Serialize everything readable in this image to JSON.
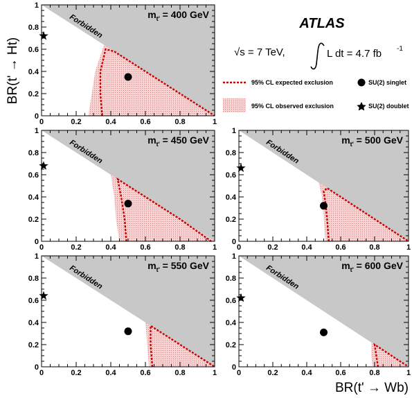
{
  "header": {
    "experiment": "ATLAS",
    "energy_label": "√s = 7 TeV,",
    "lumi_label": "L dt = 4.7 fb",
    "lumi_exponent": "-1"
  },
  "legend": {
    "expected": "95% CL expected exclusion",
    "observed": "95% CL observed exclusion",
    "singlet": "SU(2) singlet",
    "doublet": "SU(2) doublet"
  },
  "axes": {
    "ylabel": "BR(t' → Ht)",
    "xlabel": "BR(t' → Wb)"
  },
  "forbidden_label": "Forbidden",
  "colors": {
    "forbidden": "#c8c8c8",
    "expected": "#cc0000",
    "observed_fill": "#f5c4c4"
  },
  "chart_data": [
    {
      "type": "scatter",
      "title": "m_t' = 400 GeV",
      "mass_label": "= 400 GeV",
      "xlim": [
        0,
        1
      ],
      "ylim": [
        0,
        1
      ],
      "x_ticks": [
        "0",
        "0.2",
        "0.4",
        "0.6",
        "0.8",
        "1"
      ],
      "y_ticks": [
        "0",
        "0.2",
        "0.4",
        "0.6",
        "0.8",
        "1"
      ],
      "expected_curve": [
        [
          0.35,
          0
        ],
        [
          0.34,
          0.2
        ],
        [
          0.34,
          0.4
        ],
        [
          0.37,
          0.6
        ],
        [
          0.42,
          0.58
        ],
        [
          0.6,
          0.4
        ],
        [
          0.8,
          0.2
        ],
        [
          1,
          0
        ]
      ],
      "observed_region": [
        [
          0.27,
          0
        ],
        [
          0.29,
          0.2
        ],
        [
          0.31,
          0.4
        ],
        [
          0.36,
          0.64
        ],
        [
          1,
          0
        ]
      ],
      "singlet": [
        0.5,
        0.35
      ],
      "doublet": [
        0,
        0.72
      ]
    },
    {
      "type": "scatter",
      "title": "m_t' = 450 GeV",
      "mass_label": "= 450 GeV",
      "xlim": [
        0,
        1
      ],
      "ylim": [
        0,
        1
      ],
      "x_ticks": [
        "0",
        "0.2",
        "0.4",
        "0.6",
        "0.8",
        "1"
      ],
      "y_ticks": [
        "0",
        "0.2",
        "0.4",
        "0.6",
        "0.8",
        "1"
      ],
      "expected_curve": [
        [
          0.49,
          0
        ],
        [
          0.48,
          0.2
        ],
        [
          0.46,
          0.4
        ],
        [
          0.44,
          0.56
        ],
        [
          0.6,
          0.4
        ],
        [
          0.8,
          0.2
        ],
        [
          0.98,
          0
        ]
      ],
      "observed_region": [
        [
          0.45,
          0
        ],
        [
          0.43,
          0.2
        ],
        [
          0.42,
          0.4
        ],
        [
          0.4,
          0.6
        ],
        [
          1,
          0
        ]
      ],
      "singlet": [
        0.5,
        0.34
      ],
      "doublet": [
        0,
        0.68
      ]
    },
    {
      "type": "scatter",
      "title": "m_t' = 500 GeV",
      "mass_label": "= 500 GeV",
      "xlim": [
        0,
        1
      ],
      "ylim": [
        0,
        1
      ],
      "x_ticks": [
        "0",
        "0.2",
        "0.4",
        "0.6",
        "0.8",
        "1"
      ],
      "y_ticks": [
        "0",
        "0.2",
        "0.4",
        "0.6",
        "0.8",
        "1"
      ],
      "expected_curve": [
        [
          0.53,
          0
        ],
        [
          0.52,
          0.2
        ],
        [
          0.51,
          0.35
        ],
        [
          0.5,
          0.45
        ],
        [
          0.52,
          0.48
        ],
        [
          0.7,
          0.3
        ],
        [
          0.85,
          0.15
        ],
        [
          1,
          0
        ]
      ],
      "observed_region": [
        [
          0.51,
          0
        ],
        [
          0.5,
          0.2
        ],
        [
          0.49,
          0.4
        ],
        [
          0.47,
          0.53
        ],
        [
          1,
          0
        ]
      ],
      "singlet": [
        0.5,
        0.32
      ],
      "doublet": [
        0,
        0.66
      ]
    },
    {
      "type": "scatter",
      "title": "m_t' = 550 GeV",
      "mass_label": "= 550 GeV",
      "xlim": [
        0,
        1
      ],
      "ylim": [
        0,
        1
      ],
      "x_ticks": [
        "0",
        "0.2",
        "0.4",
        "0.6",
        "0.8",
        "1"
      ],
      "y_ticks": [
        "0",
        "0.2",
        "0.4",
        "0.6",
        "0.8",
        "1"
      ],
      "expected_curve": [
        [
          0.64,
          0
        ],
        [
          0.63,
          0.2
        ],
        [
          0.63,
          0.37
        ],
        [
          0.8,
          0.2
        ],
        [
          1,
          0
        ]
      ],
      "observed_region": [
        [
          0.62,
          0
        ],
        [
          0.61,
          0.2
        ],
        [
          0.6,
          0.4
        ],
        [
          1,
          0
        ]
      ],
      "singlet": [
        0.5,
        0.32
      ],
      "doublet": [
        0,
        0.64
      ]
    },
    {
      "type": "scatter",
      "title": "m_t' = 600 GeV",
      "mass_label": "= 600 GeV",
      "xlim": [
        0,
        1
      ],
      "ylim": [
        0,
        1
      ],
      "x_ticks": [
        "0",
        "0.2",
        "0.4",
        "0.6",
        "0.8",
        "1"
      ],
      "y_ticks": [
        "0",
        "0.2",
        "0.4",
        "0.6",
        "0.8",
        "1"
      ],
      "expected_curve": [
        [
          0.82,
          0
        ],
        [
          0.81,
          0.1
        ],
        [
          0.8,
          0.2
        ],
        [
          0.9,
          0.1
        ],
        [
          1,
          0
        ]
      ],
      "observed_region": [
        [
          0.79,
          0
        ],
        [
          0.78,
          0.1
        ],
        [
          0.78,
          0.22
        ],
        [
          1,
          0
        ]
      ],
      "singlet": [
        0.5,
        0.31
      ],
      "doublet": [
        0,
        0.62
      ]
    }
  ]
}
